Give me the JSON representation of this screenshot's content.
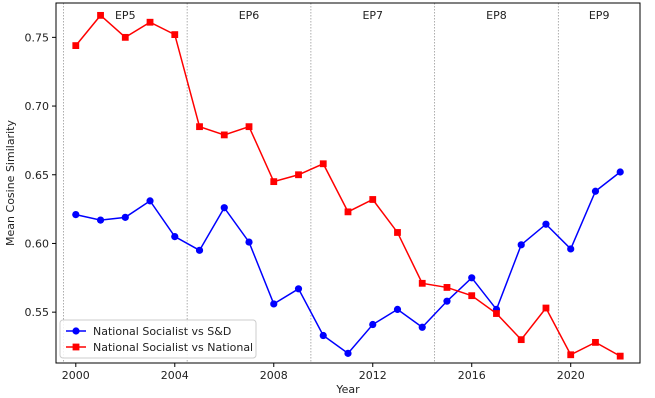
{
  "chart_data": {
    "type": "line",
    "title": "",
    "xlabel": "Year",
    "ylabel": "Mean Cosine Similarity",
    "xlim": [
      1999.2,
      2022.8
    ],
    "ylim": [
      0.513,
      0.775
    ],
    "xticks": [
      2000,
      2004,
      2008,
      2012,
      2016,
      2020
    ],
    "yticks": [
      0.55,
      0.6,
      0.65,
      0.7,
      0.75
    ],
    "ytick_labels": [
      "0.55",
      "0.60",
      "0.65",
      "0.70",
      "0.75"
    ],
    "grid": false,
    "legend_position": "lower-left",
    "periods": [
      {
        "label": "EP5",
        "start": 1999.5,
        "end": 2004.5
      },
      {
        "label": "EP6",
        "start": 2004.5,
        "end": 2009.5
      },
      {
        "label": "EP7",
        "start": 2009.5,
        "end": 2014.5
      },
      {
        "label": "EP8",
        "start": 2014.5,
        "end": 2019.5
      },
      {
        "label": "EP9",
        "start": 2019.5,
        "end": 2022.8
      }
    ],
    "x": [
      2000,
      2001,
      2002,
      2003,
      2004,
      2005,
      2006,
      2007,
      2008,
      2009,
      2010,
      2011,
      2012,
      2013,
      2014,
      2015,
      2016,
      2017,
      2018,
      2019,
      2020,
      2021,
      2022
    ],
    "series": [
      {
        "name": "National Socialist vs S&D",
        "color": "#0000ff",
        "marker": "circle",
        "values": [
          0.621,
          0.617,
          0.619,
          0.631,
          0.605,
          0.595,
          0.626,
          0.601,
          0.556,
          0.567,
          0.533,
          0.52,
          0.541,
          0.552,
          0.539,
          0.558,
          0.575,
          0.552,
          0.599,
          0.614,
          0.596,
          0.638,
          0.652
        ]
      },
      {
        "name": "National Socialist vs National",
        "color": "#ff0000",
        "marker": "square",
        "values": [
          0.744,
          0.766,
          0.75,
          0.761,
          0.752,
          0.685,
          0.679,
          0.685,
          0.645,
          0.65,
          0.658,
          0.623,
          0.632,
          0.608,
          0.571,
          0.568,
          0.562,
          0.549,
          0.53,
          0.553,
          0.519,
          0.528,
          0.518
        ]
      }
    ]
  }
}
